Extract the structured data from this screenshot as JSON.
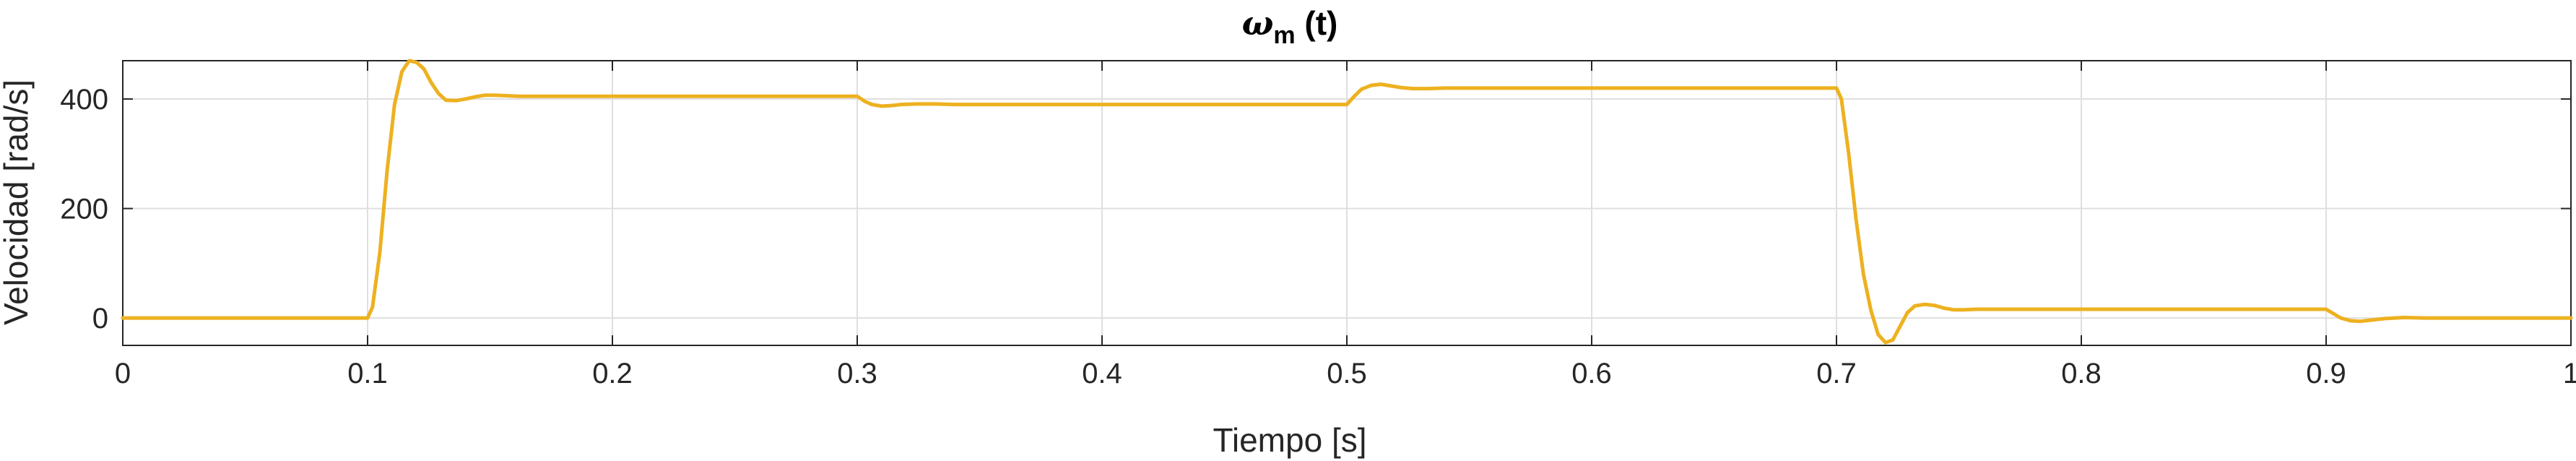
{
  "chart_data": {
    "type": "line",
    "title": {
      "symbol": "ω",
      "subscript": "m",
      "suffix": " (t)"
    },
    "xlabel": "Tiempo [s]",
    "ylabel": "Velocidad [rad/s]",
    "xlim": [
      0,
      1
    ],
    "ylim": [
      -50,
      470
    ],
    "xticks": [
      0,
      0.1,
      0.2,
      0.3,
      0.4,
      0.5,
      0.6,
      0.7,
      0.8,
      0.9,
      1
    ],
    "xtick_labels": [
      "0",
      "0.1",
      "0.2",
      "0.3",
      "0.4",
      "0.5",
      "0.6",
      "0.7",
      "0.8",
      "0.9",
      "1"
    ],
    "yticks": [
      0,
      200,
      400
    ],
    "ytick_labels": [
      "0",
      "200",
      "400"
    ],
    "grid": true,
    "line_color": "#EDB120",
    "series": [
      {
        "x": [
          0,
          0.1,
          0.102,
          0.105,
          0.108,
          0.111,
          0.114,
          0.117,
          0.12,
          0.123,
          0.126,
          0.129,
          0.132,
          0.136,
          0.14,
          0.144,
          0.148,
          0.152,
          0.157,
          0.162,
          0.168,
          0.175,
          0.185,
          0.2,
          0.299,
          0.3,
          0.303,
          0.306,
          0.31,
          0.314,
          0.318,
          0.324,
          0.332,
          0.34,
          0.36,
          0.499,
          0.5,
          0.503,
          0.506,
          0.51,
          0.514,
          0.518,
          0.522,
          0.527,
          0.533,
          0.54,
          0.55,
          0.56,
          0.699,
          0.7,
          0.702,
          0.705,
          0.708,
          0.711,
          0.714,
          0.717,
          0.72,
          0.723,
          0.726,
          0.729,
          0.732,
          0.736,
          0.74,
          0.744,
          0.748,
          0.752,
          0.757,
          0.762,
          0.768,
          0.775,
          0.785,
          0.8,
          0.899,
          0.9,
          0.903,
          0.906,
          0.91,
          0.914,
          0.918,
          0.924,
          0.932,
          0.94,
          0.96,
          1.0
        ],
        "y": [
          0,
          0,
          20,
          120,
          270,
          390,
          450,
          470,
          467,
          455,
          430,
          410,
          398,
          397,
          400,
          404,
          407,
          407,
          406,
          405,
          405,
          405,
          405,
          405,
          405,
          405,
          396,
          390,
          387,
          388,
          390,
          391,
          391,
          390,
          390,
          390,
          390,
          405,
          418,
          425,
          427,
          424,
          421,
          419,
          419,
          420,
          420,
          420,
          420,
          420,
          400,
          300,
          180,
          80,
          15,
          -30,
          -45,
          -40,
          -15,
          10,
          22,
          25,
          23,
          18,
          15,
          15,
          16,
          16,
          16,
          16,
          16,
          16,
          16,
          16,
          8,
          0,
          -5,
          -6,
          -4,
          -1,
          1,
          0,
          0,
          0
        ]
      }
    ]
  }
}
